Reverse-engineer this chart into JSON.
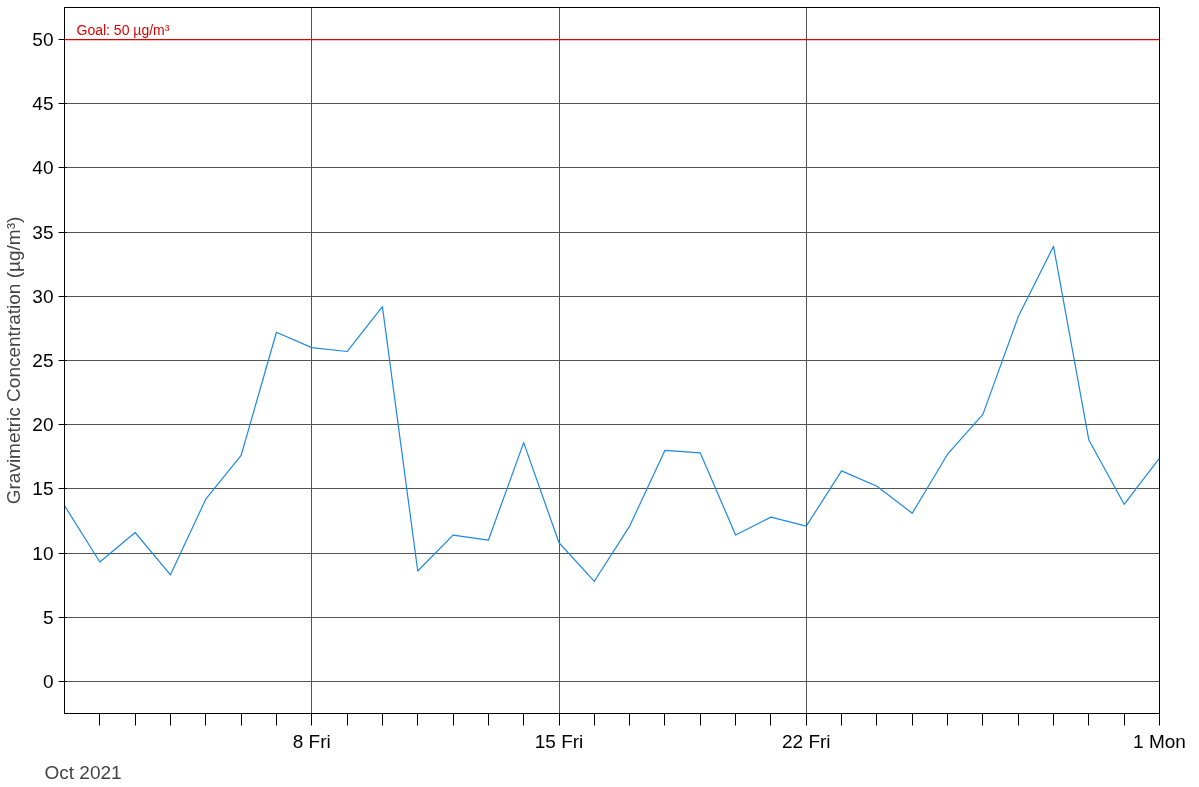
{
  "chart_data": {
    "type": "line",
    "ylabel": "Gravimetric Concentration (µg/m³)",
    "x": [
      "2021-10-01",
      "2021-10-02",
      "2021-10-03",
      "2021-10-04",
      "2021-10-05",
      "2021-10-06",
      "2021-10-07",
      "2021-10-08",
      "2021-10-09",
      "2021-10-10",
      "2021-10-11",
      "2021-10-12",
      "2021-10-13",
      "2021-10-14",
      "2021-10-15",
      "2021-10-16",
      "2021-10-17",
      "2021-10-18",
      "2021-10-19",
      "2021-10-20",
      "2021-10-21",
      "2021-10-22",
      "2021-10-23",
      "2021-10-24",
      "2021-10-25",
      "2021-10-26",
      "2021-10-27",
      "2021-10-28",
      "2021-10-29",
      "2021-10-30",
      "2021-10-31",
      "2021-11-01"
    ],
    "series": [
      {
        "color": "#1e88e5",
        "values": [
          13.7,
          9.3,
          11.6,
          8.3,
          14.2,
          17.6,
          27.2,
          26.0,
          25.7,
          29.2,
          8.6,
          11.4,
          11.0,
          18.6,
          10.8,
          7.8,
          12.1,
          18.0,
          17.8,
          11.4,
          12.8,
          12.1,
          16.4,
          15.2,
          13.1,
          17.7,
          20.8,
          28.4,
          33.9,
          18.8,
          13.8,
          17.4
        ]
      }
    ],
    "xlim": [
      "2021-10-01",
      "2021-11-01"
    ],
    "xticks": [
      {
        "value": "2021-10-02",
        "label": null
      },
      {
        "value": "2021-10-03",
        "label": null
      },
      {
        "value": "2021-10-04",
        "label": null
      },
      {
        "value": "2021-10-05",
        "label": null
      },
      {
        "value": "2021-10-06",
        "label": null
      },
      {
        "value": "2021-10-07",
        "label": null
      },
      {
        "value": "2021-10-08",
        "label": "8 Fri"
      },
      {
        "value": "2021-10-09",
        "label": null
      },
      {
        "value": "2021-10-10",
        "label": null
      },
      {
        "value": "2021-10-11",
        "label": null
      },
      {
        "value": "2021-10-12",
        "label": null
      },
      {
        "value": "2021-10-13",
        "label": null
      },
      {
        "value": "2021-10-14",
        "label": null
      },
      {
        "value": "2021-10-15",
        "label": "15 Fri"
      },
      {
        "value": "2021-10-16",
        "label": null
      },
      {
        "value": "2021-10-17",
        "label": null
      },
      {
        "value": "2021-10-18",
        "label": null
      },
      {
        "value": "2021-10-19",
        "label": null
      },
      {
        "value": "2021-10-20",
        "label": null
      },
      {
        "value": "2021-10-21",
        "label": null
      },
      {
        "value": "2021-10-22",
        "label": "22 Fri"
      },
      {
        "value": "2021-10-23",
        "label": null
      },
      {
        "value": "2021-10-24",
        "label": null
      },
      {
        "value": "2021-10-25",
        "label": null
      },
      {
        "value": "2021-10-26",
        "label": null
      },
      {
        "value": "2021-10-27",
        "label": null
      },
      {
        "value": "2021-10-28",
        "label": null
      },
      {
        "value": "2021-10-29",
        "label": null
      },
      {
        "value": "2021-10-30",
        "label": null
      },
      {
        "value": "2021-10-31",
        "label": null
      },
      {
        "value": "2021-11-01",
        "label": "1 Mon"
      }
    ],
    "ylim": [
      -2.5,
      52.5
    ],
    "yticks": [
      0,
      5,
      10,
      15,
      20,
      25,
      30,
      35,
      40,
      45,
      50
    ],
    "grid": true,
    "marker": "none",
    "line_style": "solid",
    "ref_lines": [
      {
        "axis": "y",
        "value": 50,
        "label": "Goal: 50 µg/m³",
        "color": "#e00000"
      }
    ],
    "annotations": [
      "Oct 2021"
    ]
  }
}
